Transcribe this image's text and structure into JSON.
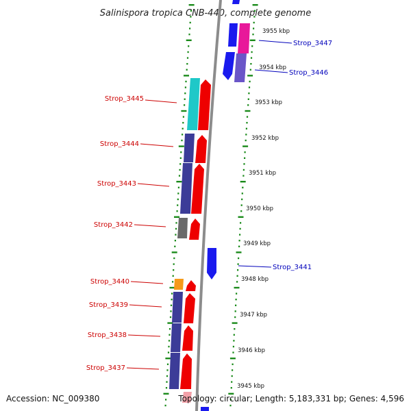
{
  "title": "Salinispora tropica CNB-440, complete genome",
  "footer": {
    "accession": "Accession: NC_009380",
    "topology": "Topology: circular; Length: 5,183,331 bp; Genes: 4,596"
  },
  "colors": {
    "forward_cds": "#ee0000",
    "reverse_cds": "#1a1aee",
    "tick": "#1a8a1a",
    "label_left": "#cc0000",
    "label_right": "#0000bb",
    "backbone": "#8c8c8c"
  },
  "scale_labels": [
    "3955 kbp",
    "3954 kbp",
    "3953 kbp",
    "3952 kbp",
    "3951 kbp",
    "3950 kbp",
    "3949 kbp",
    "3948 kbp",
    "3947 kbp",
    "3946 kbp",
    "3945 kbp"
  ],
  "genes_left": [
    {
      "name": "Strop_3445"
    },
    {
      "name": "Strop_3444"
    },
    {
      "name": "Strop_3443"
    },
    {
      "name": "Strop_3442"
    },
    {
      "name": "Strop_3440"
    },
    {
      "name": "Strop_3439"
    },
    {
      "name": "Strop_3438"
    },
    {
      "name": "Strop_3437"
    }
  ],
  "genes_right": [
    {
      "name": "Strop_3447"
    },
    {
      "name": "Strop_3446"
    },
    {
      "name": "Strop_3441"
    }
  ]
}
